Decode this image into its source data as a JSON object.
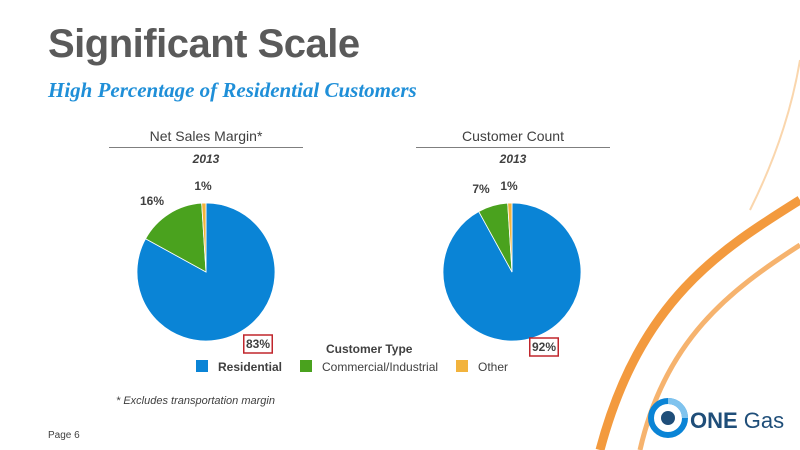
{
  "slide": {
    "title": "Significant Scale",
    "subtitle": "High Percentage of Residential Customers",
    "footnote": "* Excludes transportation margin",
    "page": "Page 6",
    "logo_text_bold": "ONE",
    "logo_text_rest": " Gas",
    "legend_title": "Customer Type"
  },
  "colors": {
    "residential": "#0a84d6",
    "commercial": "#4aa21e",
    "other": "#f2b33d",
    "highlight_box": "#c0262c",
    "accent_orange": "#f39a3e"
  },
  "chart_data": [
    {
      "type": "pie",
      "title": "Net Sales Margin*",
      "subtitle": "2013",
      "labels": [
        "Residential",
        "Commercial/Industrial",
        "Other"
      ],
      "values": [
        83,
        16,
        1
      ],
      "value_labels": [
        "83%",
        "16%",
        "1%"
      ],
      "highlighted": "Residential"
    },
    {
      "type": "pie",
      "title": "Customer Count",
      "subtitle": "2013",
      "labels": [
        "Residential",
        "Commercial/Industrial",
        "Other"
      ],
      "values": [
        92,
        7,
        1
      ],
      "value_labels": [
        "92%",
        "7%",
        "1%"
      ],
      "highlighted": "Residential"
    }
  ],
  "legend": [
    {
      "label": "Residential",
      "color": "#0a84d6"
    },
    {
      "label": "Commercial/Industrial",
      "color": "#4aa21e"
    },
    {
      "label": "Other",
      "color": "#f2b33d"
    }
  ]
}
